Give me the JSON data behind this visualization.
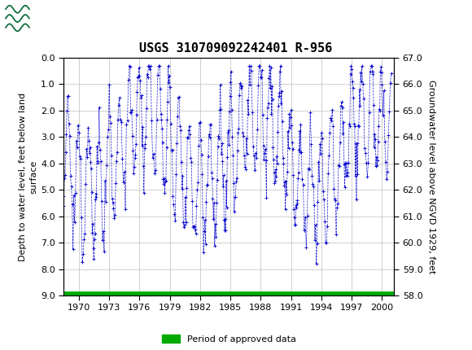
{
  "title": "USGS 310709092242401 R-956",
  "ylabel_left": "Depth to water level, feet below land\nsurface",
  "ylabel_right": "Groundwater level above NGVD 1929, feet",
  "xlim": [
    1968.5,
    2001.2
  ],
  "ylim_left": [
    9.0,
    0.0
  ],
  "ylim_right": [
    58.0,
    67.0
  ],
  "xticks": [
    1970,
    1973,
    1976,
    1979,
    1982,
    1985,
    1988,
    1991,
    1994,
    1997,
    2000
  ],
  "yticks_left": [
    0.0,
    1.0,
    2.0,
    3.0,
    4.0,
    5.0,
    6.0,
    7.0,
    8.0,
    9.0
  ],
  "yticks_right": [
    58.0,
    59.0,
    60.0,
    61.0,
    62.0,
    63.0,
    64.0,
    65.0,
    66.0,
    67.0
  ],
  "data_color": "#0000CC",
  "approved_color": "#00AA00",
  "header_color": "#006633",
  "header_text_color": "#FFFFFF",
  "plot_bg": "#FFFFFF",
  "legend_label": "Period of approved data",
  "grid_color": "#BBBBBB",
  "title_fontsize": 11,
  "axis_label_fontsize": 8,
  "tick_fontsize": 8
}
